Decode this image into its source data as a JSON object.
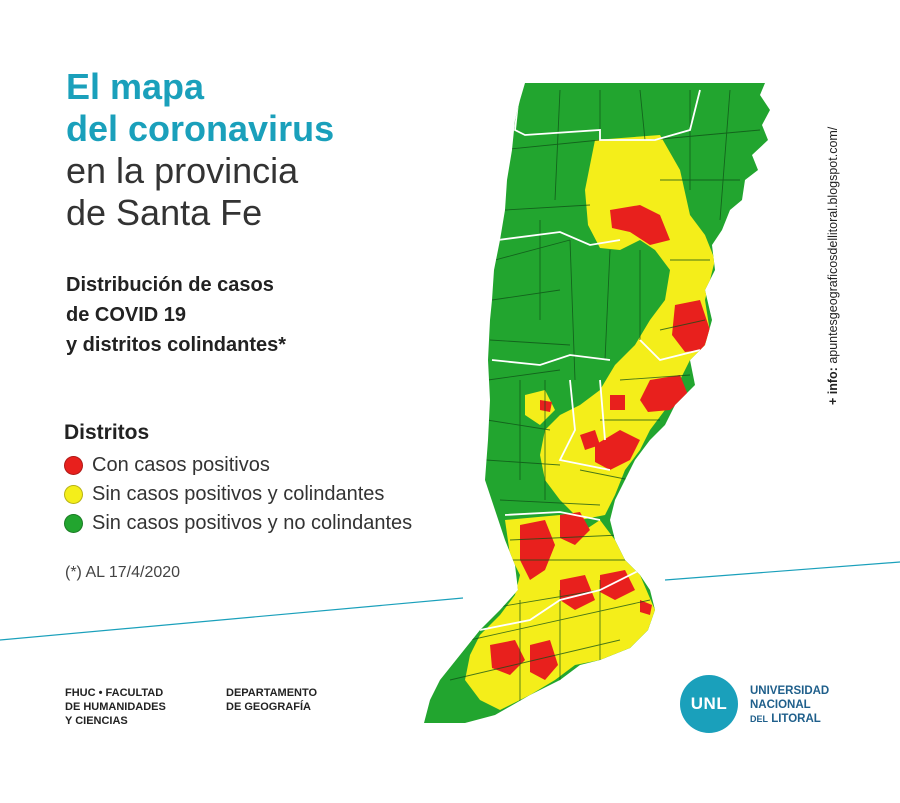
{
  "title": {
    "line1": "El mapa",
    "line2": "del coronavirus",
    "line3": "en la provincia",
    "line4": "de Santa Fe"
  },
  "subtitle": {
    "line1": "Distribución de casos",
    "line2": "de COVID 19",
    "line3": "y distritos colindantes*"
  },
  "legend": {
    "title": "Distritos",
    "items": [
      {
        "label": "Con casos positivos",
        "color": "#e8201d"
      },
      {
        "label": "Sin casos positivos y colindantes",
        "color": "#f4ee1a"
      },
      {
        "label": "Sin casos positivos y no colindantes",
        "color": "#22a52f"
      }
    ]
  },
  "footnote": "(*) AL 17/4/2020",
  "info": {
    "prefix": "+ info:",
    "url": "apuntesgeograficosdellitoral.blogspot.com/"
  },
  "footer": {
    "fhuc": {
      "line1": "FHUC • FACULTAD",
      "line2": "DE HUMANIDADES",
      "line3": "Y CIENCIAS"
    },
    "depto": {
      "line1": "DEPARTAMENTO",
      "line2": "DE GEOGRAFÍA"
    },
    "unl": {
      "logo_text": "UNL",
      "line1": "UNIVERSIDAD",
      "line2": "NACIONAL",
      "line3_small": "DEL",
      "line3": "LITORAL"
    }
  },
  "colors": {
    "accent": "#1aa0bb",
    "positive": "#e8201d",
    "adjacent": "#f4ee1a",
    "non_adjacent": "#22a52f"
  }
}
